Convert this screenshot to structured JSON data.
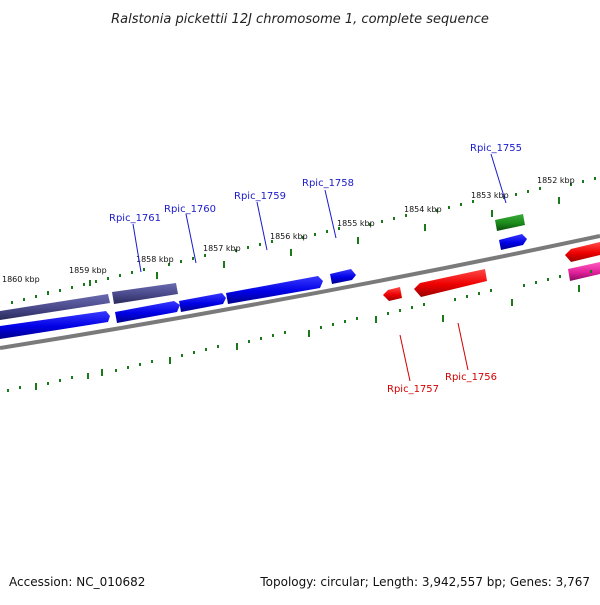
{
  "title": "Ralstonia pickettii 12J chromosome 1, complete sequence",
  "footer": {
    "accession": "Accession: NC_010682",
    "topology": "Topology: circular; Length: 3,942,557 bp; Genes: 3,767"
  },
  "ticks": [
    {
      "label": "1852 kbp"
    },
    {
      "label": "1853 kbp"
    },
    {
      "label": "1854 kbp"
    },
    {
      "label": "1855 kbp"
    },
    {
      "label": "1856 kbp"
    },
    {
      "label": "1857 kbp"
    },
    {
      "label": "1858 kbp"
    },
    {
      "label": "1859 kbp"
    },
    {
      "label": "1860 kbp"
    }
  ],
  "genes": [
    {
      "name": "Rpic_1755",
      "strand": "forward",
      "color": "#1a1acc"
    },
    {
      "name": "Rpic_1756",
      "strand": "reverse",
      "color": "#d40000"
    },
    {
      "name": "Rpic_1757",
      "strand": "reverse",
      "color": "#d40000"
    },
    {
      "name": "Rpic_1758",
      "strand": "forward",
      "color": "#1a1acc"
    },
    {
      "name": "Rpic_1759",
      "strand": "forward",
      "color": "#1a1acc"
    },
    {
      "name": "Rpic_1760",
      "strand": "forward",
      "color": "#1a1acc"
    },
    {
      "name": "Rpic_1761",
      "strand": "forward",
      "color": "#1a1acc"
    }
  ],
  "colors": {
    "forward_cds": "#0000ee",
    "forward_other": "#4a4a8c",
    "reverse_cds": "#ee0000",
    "reverse_other": "#e0209a",
    "feature_green": "#1a8a1a",
    "tick_green": "#1a7a1a",
    "backbone": "#7a7a7a"
  }
}
